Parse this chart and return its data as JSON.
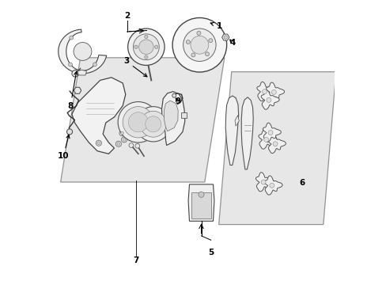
{
  "bg_color": "#ffffff",
  "panel_bg": "#dcdcdc",
  "figsize": [
    4.89,
    3.6
  ],
  "dpi": 100,
  "label_fontsize": 7.5
}
